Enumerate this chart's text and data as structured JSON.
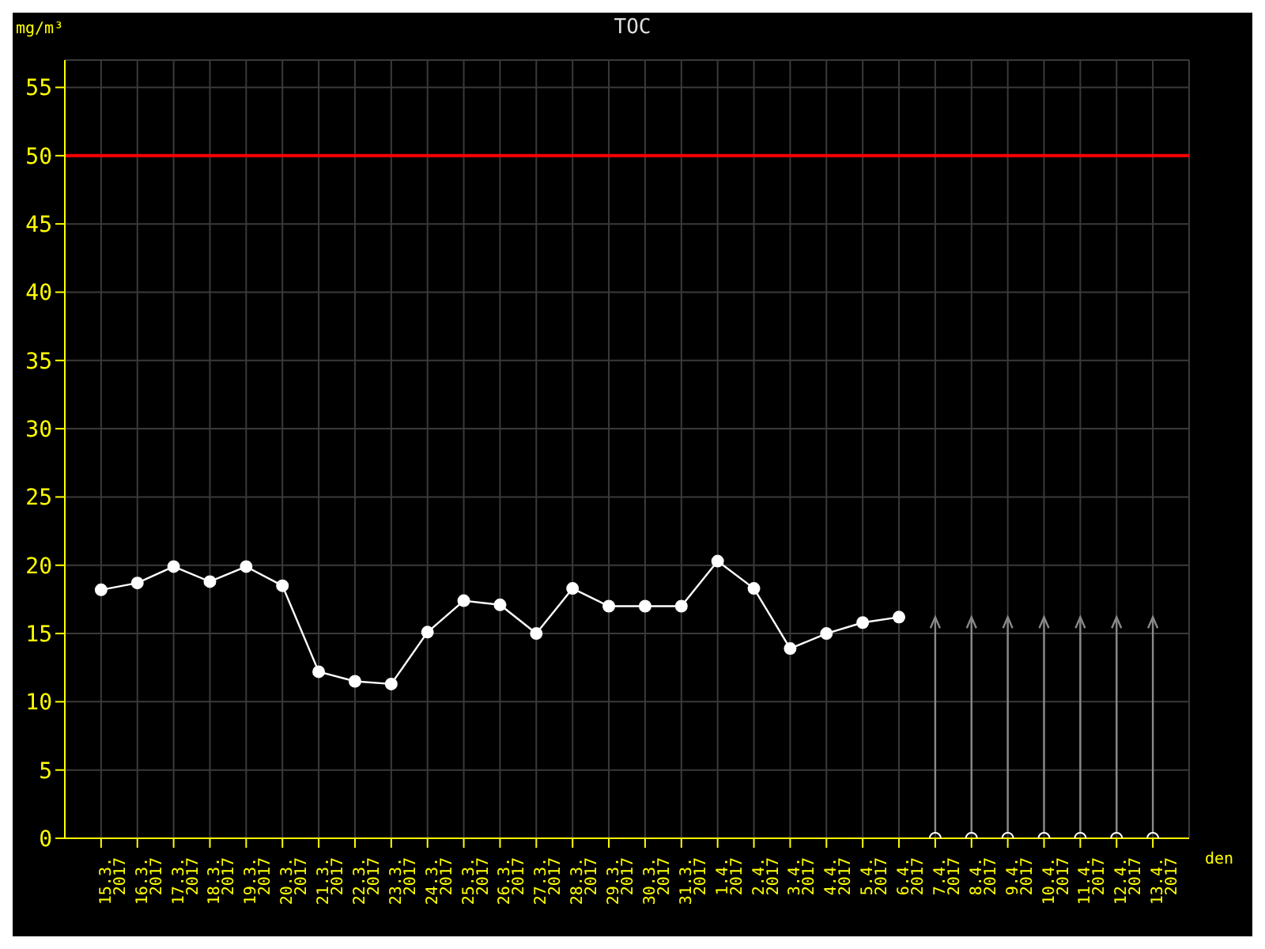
{
  "chart_data": {
    "type": "line",
    "title": "TOC",
    "xlabel": "den",
    "ylabel": "mg/m³",
    "categories": [
      "15.3. 2017",
      "16.3. 2017",
      "17.3. 2017",
      "18.3. 2017",
      "19.3. 2017",
      "20.3. 2017",
      "21.3. 2017",
      "22.3. 2017",
      "23.3. 2017",
      "24.3. 2017",
      "25.3. 2017",
      "26.3. 2017",
      "27.3. 2017",
      "28.3. 2017",
      "29.3. 2017",
      "30.3. 2017",
      "31.3. 2017",
      "1.4. 2017",
      "2.4. 2017",
      "3.4. 2017",
      "4.4. 2017",
      "5.4. 2017",
      "6.4. 2017",
      "7.4. 2017",
      "8.4. 2017",
      "9.4. 2017",
      "10.4. 2017",
      "11.4. 2017",
      "12.4. 2017",
      "13.4. 2017"
    ],
    "series": [
      {
        "color": "#ffffff",
        "marker": "circle",
        "values": [
          18.2,
          18.7,
          19.9,
          18.8,
          19.9,
          18.5,
          12.2,
          11.5,
          11.3,
          15.1,
          17.4,
          17.1,
          15.0,
          18.3,
          17.0,
          17.0,
          17.0,
          20.3,
          18.3,
          13.9,
          15.0,
          15.8,
          16.2,
          null,
          null,
          null,
          null,
          null,
          null,
          null
        ]
      },
      {
        "type": "scatter",
        "color": "#ffffff",
        "values": [
          null,
          null,
          null,
          null,
          null,
          null,
          null,
          null,
          null,
          null,
          null,
          null,
          null,
          null,
          null,
          null,
          null,
          null,
          null,
          null,
          null,
          null,
          null,
          0,
          0,
          0,
          0,
          0,
          0,
          0
        ]
      }
    ],
    "ylim": [
      0,
      57
    ],
    "yticks": [
      0,
      5,
      10,
      15,
      20,
      25,
      30,
      35,
      40,
      45,
      50,
      55
    ],
    "ref_lines": [
      {
        "axis": "y",
        "value": 50,
        "color": "#ff0000"
      }
    ],
    "grid": true,
    "line_style": "solid"
  }
}
